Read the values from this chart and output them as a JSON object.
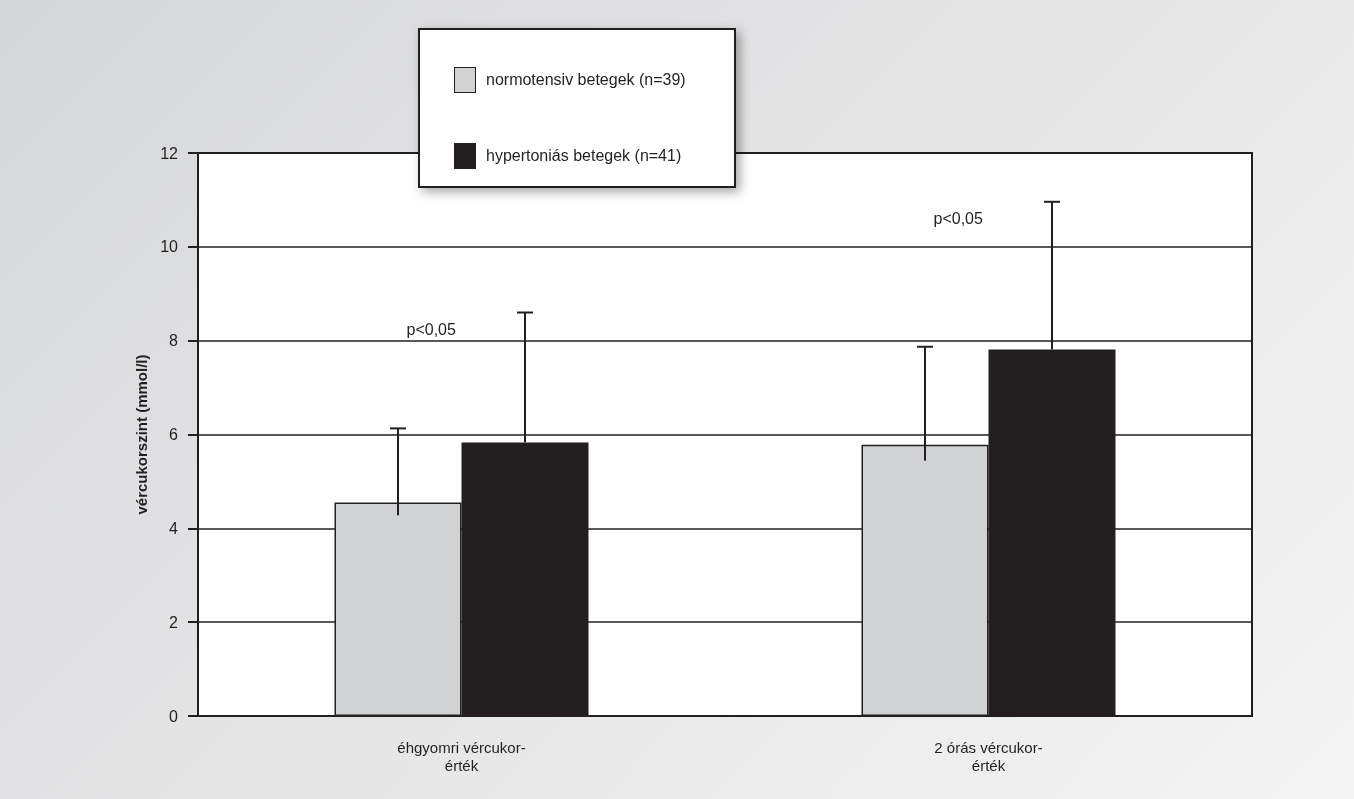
{
  "chart_data": {
    "type": "bar",
    "ylabel": "vércukorszint (mmol/l)",
    "categories": [
      "éhgyomri vércukor-\nérték",
      "2 órás vércukor-\nérték"
    ],
    "series": [
      {
        "name": "normotensiv betegek (n=39)",
        "color": "#d1d2d4",
        "values": [
          4.55,
          5.78
        ],
        "errors": [
          [
            4.28,
            6.13
          ],
          [
            5.44,
            7.87
          ]
        ]
      },
      {
        "name": "hypertoniás betegek (n=41)",
        "color": "#231f20",
        "values": [
          5.83,
          7.81
        ],
        "errors": [
          [
            5.83,
            8.6
          ],
          [
            7.81,
            10.96
          ]
        ]
      }
    ],
    "ylim": [
      0,
      12
    ],
    "yticks": [
      0,
      2,
      4,
      6,
      8,
      10,
      12
    ],
    "grid": "y",
    "legend": "top",
    "annotations": [
      "p<0,05",
      "p<0,05"
    ]
  }
}
